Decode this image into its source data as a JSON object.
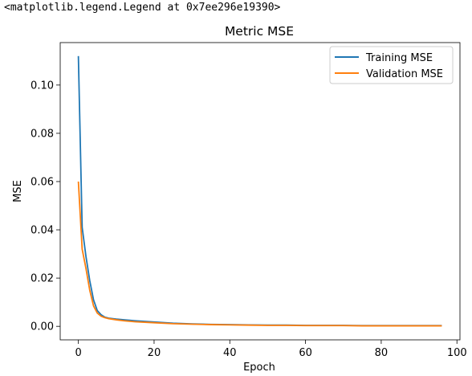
{
  "output_text": "<matplotlib.legend.Legend at 0x7ee296e19390>",
  "chart_data": {
    "type": "line",
    "title": "Metric MSE",
    "xlabel": "Epoch",
    "ylabel": "MSE",
    "xlim": [
      -4.8,
      100.8
    ],
    "ylim": [
      -0.0056,
      0.1176
    ],
    "x_ticks": [
      0,
      20,
      40,
      60,
      80,
      100
    ],
    "y_ticks": [
      0.0,
      0.02,
      0.04,
      0.06,
      0.08,
      0.1
    ],
    "x_tick_labels": [
      "0",
      "20",
      "40",
      "60",
      "80",
      "100"
    ],
    "y_tick_labels": [
      "0.00",
      "0.02",
      "0.04",
      "0.06",
      "0.08",
      "0.10"
    ],
    "grid": false,
    "legend_position": "top-right",
    "series": [
      {
        "name": "Training MSE",
        "color": "#1f77b4",
        "x": [
          0,
          1,
          2,
          3,
          4,
          5,
          6,
          7,
          8,
          10,
          12,
          15,
          20,
          25,
          30,
          35,
          40,
          45,
          50,
          55,
          60,
          65,
          70,
          75,
          80,
          85,
          90,
          96
        ],
        "y": [
          0.112,
          0.041,
          0.029,
          0.019,
          0.011,
          0.0065,
          0.0048,
          0.0038,
          0.0034,
          0.003,
          0.0027,
          0.0023,
          0.0018,
          0.0013,
          0.001,
          0.0008,
          0.0007,
          0.0006,
          0.0005,
          0.0005,
          0.0004,
          0.0004,
          0.0004,
          0.0003,
          0.0003,
          0.0003,
          0.0003,
          0.0003
        ]
      },
      {
        "name": "Validation MSE",
        "color": "#ff7f0e",
        "x": [
          0,
          1,
          2,
          3,
          4,
          5,
          6,
          7,
          8,
          10,
          12,
          15,
          20,
          25,
          30,
          35,
          40,
          45,
          50,
          55,
          60,
          65,
          70,
          75,
          80,
          85,
          90,
          96
        ],
        "y": [
          0.06,
          0.032,
          0.024,
          0.015,
          0.0085,
          0.0055,
          0.0042,
          0.0036,
          0.0032,
          0.0027,
          0.0023,
          0.0019,
          0.0015,
          0.0011,
          0.0009,
          0.0007,
          0.0006,
          0.0005,
          0.0004,
          0.0004,
          0.0003,
          0.0003,
          0.0003,
          0.0002,
          0.0002,
          0.0002,
          0.0002,
          0.0002
        ]
      }
    ]
  }
}
